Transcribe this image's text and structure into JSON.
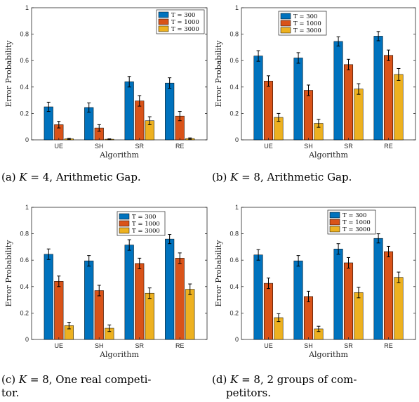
{
  "colors": {
    "series": [
      "#0072BD",
      "#D95319",
      "#EDB120"
    ]
  },
  "chart_data": [
    {
      "type": "bar",
      "categories": [
        "UE",
        "SH",
        "SR",
        "RE"
      ],
      "series": [
        {
          "name": "T = 300",
          "values": [
            0.25,
            0.245,
            0.44,
            0.43
          ],
          "err": [
            0.035,
            0.035,
            0.04,
            0.04
          ]
        },
        {
          "name": "T = 1000",
          "values": [
            0.115,
            0.09,
            0.295,
            0.18
          ],
          "err": [
            0.025,
            0.025,
            0.04,
            0.035
          ]
        },
        {
          "name": "T = 3000",
          "values": [
            0.008,
            0.005,
            0.145,
            0.01
          ],
          "err": [
            0.004,
            0.003,
            0.03,
            0.005
          ]
        }
      ],
      "xlabel": "Algorithm",
      "ylabel": "Error Probability",
      "ylim": [
        0,
        1
      ],
      "yticks": [
        "0",
        "0.2",
        "0.4",
        "0.6",
        "0.8",
        "1"
      ],
      "legend_position": "top-right",
      "grid": false,
      "caption": "(a) K = 4, Arithmetic Gap."
    },
    {
      "type": "bar",
      "categories": [
        "UE",
        "SH",
        "SR",
        "RE"
      ],
      "series": [
        {
          "name": "T = 300",
          "values": [
            0.635,
            0.62,
            0.745,
            0.785
          ],
          "err": [
            0.04,
            0.04,
            0.035,
            0.035
          ]
        },
        {
          "name": "T = 1000",
          "values": [
            0.445,
            0.375,
            0.57,
            0.64
          ],
          "err": [
            0.04,
            0.04,
            0.04,
            0.04
          ]
        },
        {
          "name": "T = 3000",
          "values": [
            0.17,
            0.125,
            0.385,
            0.495
          ],
          "err": [
            0.03,
            0.03,
            0.04,
            0.045
          ]
        }
      ],
      "xlabel": "Algorithm",
      "ylabel": "Error Probability",
      "ylim": [
        0,
        1
      ],
      "yticks": [
        "0",
        "0.2",
        "0.4",
        "0.6",
        "0.8",
        "1"
      ],
      "legend_position": "top-left",
      "grid": false,
      "caption": "(b) K = 8, Arithmetic Gap."
    },
    {
      "type": "bar",
      "categories": [
        "UE",
        "SH",
        "SR",
        "RE"
      ],
      "series": [
        {
          "name": "T = 300",
          "values": [
            0.645,
            0.595,
            0.715,
            0.76
          ],
          "err": [
            0.04,
            0.04,
            0.04,
            0.035
          ]
        },
        {
          "name": "T = 1000",
          "values": [
            0.44,
            0.37,
            0.575,
            0.615
          ],
          "err": [
            0.04,
            0.04,
            0.04,
            0.04
          ]
        },
        {
          "name": "T = 3000",
          "values": [
            0.105,
            0.085,
            0.35,
            0.38
          ],
          "err": [
            0.025,
            0.025,
            0.04,
            0.04
          ]
        }
      ],
      "xlabel": "Algorithm",
      "ylabel": "Error Probability",
      "ylim": [
        0,
        1
      ],
      "yticks": [
        "0",
        "0.2",
        "0.4",
        "0.6",
        "0.8",
        "1"
      ],
      "legend_position": "top-right",
      "grid": false,
      "caption": "(c) K = 8, One real competi- tor."
    },
    {
      "type": "bar",
      "categories": [
        "UE",
        "SH",
        "SR",
        "RE"
      ],
      "series": [
        {
          "name": "T = 300",
          "values": [
            0.64,
            0.595,
            0.685,
            0.765
          ],
          "err": [
            0.04,
            0.04,
            0.04,
            0.035
          ]
        },
        {
          "name": "T = 1000",
          "values": [
            0.425,
            0.325,
            0.58,
            0.665
          ],
          "err": [
            0.04,
            0.04,
            0.04,
            0.04
          ]
        },
        {
          "name": "T = 3000",
          "values": [
            0.165,
            0.08,
            0.355,
            0.47
          ],
          "err": [
            0.03,
            0.02,
            0.04,
            0.04
          ]
        }
      ],
      "xlabel": "Algorithm",
      "ylabel": "Error Probability",
      "ylim": [
        0,
        1
      ],
      "yticks": [
        "0",
        "0.2",
        "0.4",
        "0.6",
        "0.8",
        "1"
      ],
      "legend_position": "top-left",
      "grid": false,
      "caption": "(d) K = 8, 2 groups of com- petitors."
    }
  ]
}
